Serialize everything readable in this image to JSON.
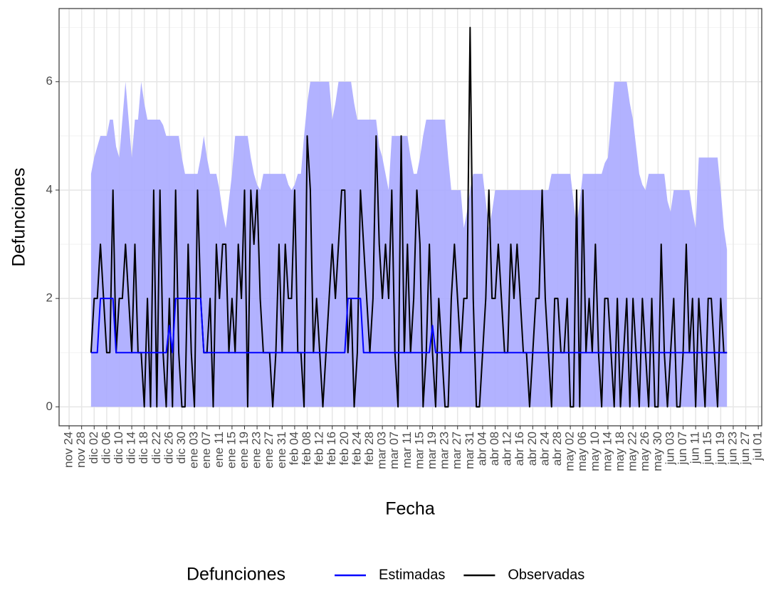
{
  "chart_data": {
    "type": "line",
    "x_label": "Fecha",
    "y_label": "Defunciones",
    "legend_title": "Defunciones",
    "legend_position": "bottom",
    "xlim": [
      -3.2,
      221.1
    ],
    "ylim": [
      -0.35,
      7.35
    ],
    "grid": true,
    "yticks": [
      0,
      2,
      4,
      6
    ],
    "yminorticks": [
      1,
      3,
      5,
      7
    ],
    "xticks": [
      {
        "value": 0,
        "label": "nov 24"
      },
      {
        "value": 4,
        "label": "nov 28"
      },
      {
        "value": 8,
        "label": "dic 02"
      },
      {
        "value": 12,
        "label": "dic 06"
      },
      {
        "value": 16,
        "label": "dic 10"
      },
      {
        "value": 20,
        "label": "dic 14"
      },
      {
        "value": 24,
        "label": "dic 18"
      },
      {
        "value": 28,
        "label": "dic 22"
      },
      {
        "value": 32,
        "label": "dic 26"
      },
      {
        "value": 36,
        "label": "dic 30"
      },
      {
        "value": 40,
        "label": "ene 03"
      },
      {
        "value": 44,
        "label": "ene 07"
      },
      {
        "value": 48,
        "label": "ene 11"
      },
      {
        "value": 52,
        "label": "ene 15"
      },
      {
        "value": 56,
        "label": "ene 19"
      },
      {
        "value": 60,
        "label": "ene 23"
      },
      {
        "value": 64,
        "label": "ene 27"
      },
      {
        "value": 68,
        "label": "ene 31"
      },
      {
        "value": 72,
        "label": "feb 04"
      },
      {
        "value": 76,
        "label": "feb 08"
      },
      {
        "value": 80,
        "label": "feb 12"
      },
      {
        "value": 84,
        "label": "feb 16"
      },
      {
        "value": 88,
        "label": "feb 20"
      },
      {
        "value": 92,
        "label": "feb 24"
      },
      {
        "value": 96,
        "label": "feb 28"
      },
      {
        "value": 100,
        "label": "mar 03"
      },
      {
        "value": 104,
        "label": "mar 07"
      },
      {
        "value": 108,
        "label": "mar 11"
      },
      {
        "value": 112,
        "label": "mar 15"
      },
      {
        "value": 116,
        "label": "mar 19"
      },
      {
        "value": 120,
        "label": "mar 23"
      },
      {
        "value": 124,
        "label": "mar 27"
      },
      {
        "value": 128,
        "label": "mar 31"
      },
      {
        "value": 132,
        "label": "abr 04"
      },
      {
        "value": 136,
        "label": "abr 08"
      },
      {
        "value": 140,
        "label": "abr 12"
      },
      {
        "value": 144,
        "label": "abr 16"
      },
      {
        "value": 148,
        "label": "abr 20"
      },
      {
        "value": 152,
        "label": "abr 24"
      },
      {
        "value": 156,
        "label": "abr 28"
      },
      {
        "value": 160,
        "label": "may 02"
      },
      {
        "value": 164,
        "label": "may 06"
      },
      {
        "value": 168,
        "label": "may 10"
      },
      {
        "value": 172,
        "label": "may 14"
      },
      {
        "value": 176,
        "label": "may 18"
      },
      {
        "value": 180,
        "label": "may 22"
      },
      {
        "value": 184,
        "label": "may 26"
      },
      {
        "value": 188,
        "label": "may 30"
      },
      {
        "value": 192,
        "label": "jun 03"
      },
      {
        "value": 196,
        "label": "jun 07"
      },
      {
        "value": 200,
        "label": "jun 11"
      },
      {
        "value": 204,
        "label": "jun 15"
      },
      {
        "value": 208,
        "label": "jun 19"
      },
      {
        "value": 212,
        "label": "jun 23"
      },
      {
        "value": 216,
        "label": "jun 27"
      },
      {
        "value": 220,
        "label": "jul 01"
      }
    ],
    "x": [
      7,
      8,
      9,
      10,
      11,
      12,
      13,
      14,
      15,
      16,
      17,
      18,
      19,
      20,
      21,
      22,
      23,
      24,
      25,
      26,
      27,
      28,
      29,
      30,
      31,
      32,
      33,
      34,
      35,
      36,
      37,
      38,
      39,
      40,
      41,
      42,
      43,
      44,
      45,
      46,
      47,
      48,
      49,
      50,
      51,
      52,
      53,
      54,
      55,
      56,
      57,
      58,
      59,
      60,
      61,
      62,
      63,
      64,
      65,
      66,
      67,
      68,
      69,
      70,
      71,
      72,
      73,
      74,
      75,
      76,
      77,
      78,
      79,
      80,
      81,
      82,
      83,
      84,
      85,
      86,
      87,
      88,
      89,
      90,
      91,
      92,
      93,
      94,
      95,
      96,
      97,
      98,
      99,
      100,
      101,
      102,
      103,
      104,
      105,
      106,
      107,
      108,
      109,
      110,
      111,
      112,
      113,
      114,
      115,
      116,
      117,
      118,
      119,
      120,
      121,
      122,
      123,
      124,
      125,
      126,
      127,
      128,
      129,
      130,
      131,
      132,
      133,
      134,
      135,
      136,
      137,
      138,
      139,
      140,
      141,
      142,
      143,
      144,
      145,
      146,
      147,
      148,
      149,
      150,
      151,
      152,
      153,
      154,
      155,
      156,
      157,
      158,
      159,
      160,
      161,
      162,
      163,
      164,
      165,
      166,
      167,
      168,
      169,
      170,
      171,
      172,
      173,
      174,
      175,
      176,
      177,
      178,
      179,
      180,
      181,
      182,
      183,
      184,
      185,
      186,
      187,
      188,
      189,
      190,
      191,
      192,
      193,
      194,
      195,
      196,
      197,
      198,
      199,
      200,
      201,
      202,
      203,
      204,
      205,
      206,
      207,
      208,
      209,
      210
    ],
    "band": {
      "color": "#aaaaff",
      "upper": [
        4.3,
        4.6,
        4.8,
        5,
        5,
        5,
        5.3,
        5.3,
        4.8,
        4.6,
        5.3,
        6,
        5.3,
        4.6,
        5.3,
        5.3,
        6,
        5.6,
        5.3,
        5.3,
        5.3,
        5.3,
        5.3,
        5.2,
        5,
        5,
        5,
        5,
        5,
        4.6,
        4.3,
        4.3,
        4.3,
        4.3,
        4.3,
        4.6,
        5,
        4.6,
        4.3,
        4.3,
        4.3,
        4,
        3.6,
        3.3,
        3.8,
        4.3,
        5,
        5,
        5,
        5,
        5,
        4.6,
        4.3,
        4.1,
        4,
        4.3,
        4.3,
        4.3,
        4.3,
        4.3,
        4.3,
        4.3,
        4.3,
        4.1,
        4,
        4.1,
        4.3,
        4.3,
        5,
        5.6,
        6,
        6,
        6,
        6,
        6,
        6,
        6,
        5.3,
        5.6,
        6,
        6,
        6,
        6,
        6,
        5.6,
        5.3,
        5.3,
        5.3,
        5.3,
        5.3,
        5.3,
        5.3,
        4.8,
        4.6,
        4.3,
        4,
        5,
        5,
        5,
        5,
        5,
        5,
        4.6,
        4.3,
        4.3,
        4.6,
        5,
        5.3,
        5.3,
        5.3,
        5.3,
        5.3,
        5.3,
        5.3,
        4.6,
        4,
        4,
        4,
        4,
        3.3,
        3.6,
        4,
        4.3,
        4.3,
        4.3,
        4.3,
        3.8,
        3.3,
        3.6,
        4,
        4,
        4,
        4,
        4,
        4,
        4,
        4,
        4,
        4,
        4,
        4,
        4,
        4,
        4,
        4,
        4,
        4,
        4.3,
        4.3,
        4.3,
        4.3,
        4.3,
        4.3,
        4.3,
        3.8,
        3.3,
        3.8,
        4.3,
        4.3,
        4.3,
        4.3,
        4.3,
        4.3,
        4.3,
        4.5,
        4.6,
        5.3,
        6,
        6,
        6,
        6,
        6,
        5.6,
        5.3,
        4.8,
        4.3,
        4.1,
        4,
        4.3,
        4.3,
        4.3,
        4.3,
        4.3,
        4.3,
        3.8,
        3.6,
        4,
        4,
        4,
        4,
        4,
        4,
        3.6,
        3.3,
        4.6,
        4.6,
        4.6,
        4.6,
        4.6,
        4.6,
        4.6,
        4,
        3.3,
        2.9
      ],
      "lower": [
        0,
        0,
        0,
        0,
        0,
        0,
        0,
        0,
        0,
        0,
        0,
        0,
        0,
        0,
        0,
        0,
        0,
        0,
        0,
        0,
        0,
        0,
        0,
        0,
        0,
        0,
        0,
        0,
        0,
        0,
        0,
        0,
        0,
        0,
        0,
        0,
        0,
        0,
        0,
        0,
        0,
        0,
        0,
        0,
        0,
        0,
        0,
        0,
        0,
        0,
        0,
        0,
        0,
        0,
        0,
        0,
        0,
        0,
        0,
        0,
        0,
        0,
        0,
        0,
        0,
        0,
        0,
        0,
        0,
        0,
        0,
        0,
        0,
        0,
        0,
        0,
        0,
        0,
        0,
        0,
        0,
        0,
        0,
        0,
        0,
        0,
        0,
        0,
        0,
        0,
        0,
        0,
        0,
        0,
        0,
        0,
        0,
        0,
        0,
        0,
        0,
        0,
        0,
        0,
        0,
        0,
        0,
        0,
        0,
        0,
        0,
        0,
        0,
        0,
        0,
        0,
        0,
        0,
        0,
        0,
        0,
        0,
        0,
        0,
        0,
        0,
        0,
        0,
        0,
        0,
        0,
        0,
        0,
        0,
        0,
        0,
        0,
        0,
        0,
        0,
        0,
        0,
        0,
        0,
        0,
        0,
        0,
        0,
        0,
        0,
        0,
        0,
        0,
        0,
        0,
        0,
        0,
        0,
        0,
        0,
        0,
        0,
        0,
        0,
        0,
        0,
        0,
        0,
        0,
        0,
        0,
        0,
        0,
        0,
        0,
        0,
        0,
        0,
        0,
        0,
        0,
        0,
        0,
        0,
        0,
        0,
        0,
        0,
        0,
        0,
        0,
        0,
        0,
        0,
        0,
        0,
        0,
        0,
        0,
        0,
        0,
        0,
        0,
        0
      ]
    },
    "series": [
      {
        "name": "Estimadas",
        "color": "#0000ff",
        "values": [
          1,
          1,
          1,
          2,
          2,
          2,
          2,
          2,
          1,
          1,
          1,
          1,
          1,
          1,
          1,
          1,
          1,
          1,
          1,
          1,
          1,
          1,
          1,
          1,
          1,
          1.5,
          1,
          2,
          2,
          2,
          2,
          2,
          2,
          2,
          2,
          2,
          1,
          1,
          1,
          1,
          1,
          1,
          1,
          1,
          1,
          1,
          1,
          1,
          1,
          1,
          1,
          1,
          1,
          1,
          1,
          1,
          1,
          1,
          1,
          1,
          1,
          1,
          1,
          1,
          1,
          1,
          1,
          1,
          1,
          1,
          1,
          1,
          1,
          1,
          1,
          1,
          1,
          1,
          1,
          1,
          1,
          1,
          2,
          2,
          2,
          2,
          2,
          1,
          1,
          1,
          1,
          1,
          1,
          1,
          1,
          1,
          1,
          1,
          1,
          1,
          1,
          1,
          1,
          1,
          1,
          1,
          1,
          1,
          1,
          1.5,
          1,
          1,
          1,
          1,
          1,
          1,
          1,
          1,
          1,
          1,
          1,
          1,
          1,
          1,
          1,
          1,
          1,
          1,
          1,
          1,
          1,
          1,
          1,
          1,
          1,
          1,
          1,
          1,
          1,
          1,
          1,
          1,
          1,
          1,
          1,
          1,
          1,
          1,
          1,
          1,
          1,
          1,
          1,
          1,
          1,
          1,
          1,
          1,
          1,
          1,
          1,
          1,
          1,
          1,
          1,
          1,
          1,
          1,
          1,
          1,
          1,
          1,
          1,
          1,
          1,
          1,
          1,
          1,
          1,
          1,
          1,
          1,
          1,
          1,
          1,
          1,
          1,
          1,
          1,
          1,
          1,
          1,
          1,
          1,
          1,
          1,
          1,
          1,
          1,
          1,
          1,
          1,
          1,
          1
        ]
      },
      {
        "name": "Observadas",
        "color": "#000000",
        "values": [
          1,
          2,
          2,
          3,
          2,
          1,
          1,
          4,
          1,
          2,
          2,
          3,
          2,
          1,
          3,
          1,
          1,
          0,
          2,
          0,
          4,
          0,
          4,
          1,
          0,
          2,
          0,
          4,
          1,
          0,
          0,
          3,
          1,
          0,
          4,
          2,
          1,
          1,
          2,
          0,
          3,
          2,
          3,
          3,
          1,
          2,
          1,
          3,
          2,
          4,
          0,
          4,
          3,
          4,
          2,
          1,
          1,
          1,
          0,
          1,
          3,
          1,
          3,
          2,
          2,
          4,
          1,
          1,
          0,
          5,
          4,
          1,
          2,
          1,
          0,
          1,
          2,
          3,
          2,
          3,
          4,
          4,
          1,
          2,
          0,
          1,
          4,
          3,
          2,
          1,
          2,
          5,
          3,
          2,
          3,
          2,
          4,
          1,
          0,
          5,
          1,
          3,
          1,
          2,
          4,
          3,
          0,
          1,
          3,
          1,
          0,
          2,
          1,
          0,
          0,
          2,
          3,
          2,
          1,
          2,
          2,
          7,
          2,
          0,
          0,
          1,
          2,
          4,
          2,
          2,
          3,
          2,
          1,
          1,
          3,
          2,
          3,
          2,
          1,
          1,
          0,
          1,
          2,
          2,
          4,
          2,
          1,
          0,
          2,
          2,
          1,
          1,
          2,
          0,
          0,
          4,
          0,
          4,
          1,
          2,
          1,
          3,
          1,
          0,
          2,
          2,
          1,
          0,
          2,
          0,
          1,
          2,
          0,
          2,
          1,
          0,
          2,
          1,
          0,
          2,
          0,
          0,
          3,
          1,
          0,
          1,
          2,
          0,
          0,
          1,
          3,
          1,
          2,
          0,
          2,
          1,
          0,
          2,
          2,
          1,
          0,
          2,
          1,
          1
        ]
      }
    ]
  }
}
